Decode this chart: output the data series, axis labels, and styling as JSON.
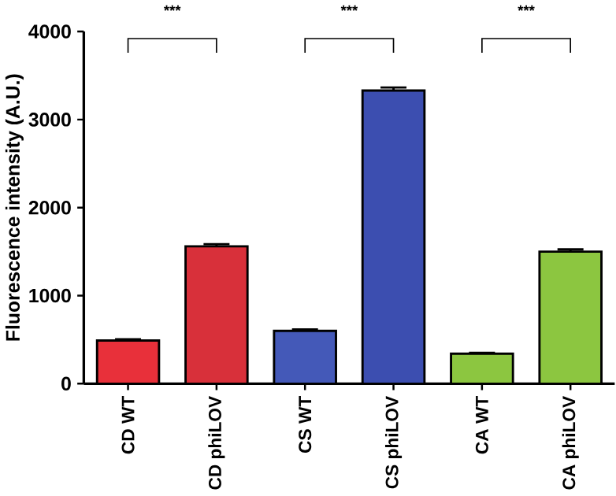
{
  "chart_data": {
    "type": "bar",
    "ylabel": "Fluorescence intensity (A.U.)",
    "categories": [
      "CD WT",
      "CD phiLOV",
      "CS WT",
      "CS phiLOV",
      "CA WT",
      "CA phiLOV"
    ],
    "values": [
      490,
      1560,
      600,
      3330,
      340,
      1500
    ],
    "errors": [
      15,
      25,
      15,
      35,
      10,
      25
    ],
    "colors": [
      "#e8303a",
      "#d8303a",
      "#4459b8",
      "#3c4eb0",
      "#8cc640",
      "#8cc640"
    ],
    "ylim": [
      0,
      4000
    ],
    "yticks": [
      0,
      1000,
      2000,
      3000,
      4000
    ],
    "annotations": [
      "***",
      "***",
      "***"
    ]
  }
}
